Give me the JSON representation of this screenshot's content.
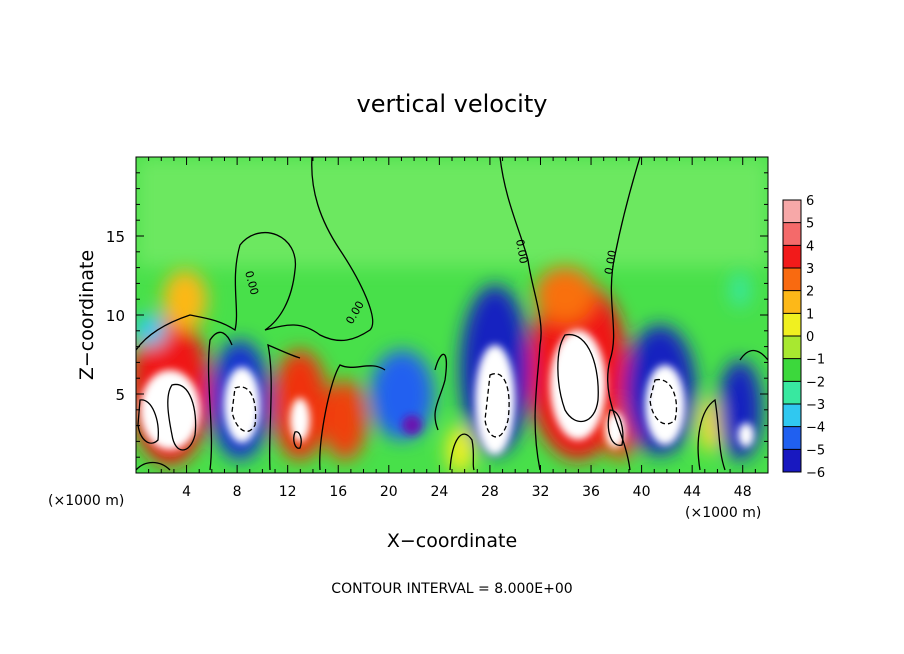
{
  "chart_data": {
    "type": "heatmap",
    "title": "vertical velocity",
    "xlabel": "X−coordinate",
    "ylabel": "Z−coordinate",
    "x_unit_left": "(×1000 m)",
    "x_unit_right": "(×1000 m)",
    "footer": "CONTOUR INTERVAL = 8.000E+00",
    "xlim": [
      0,
      50
    ],
    "ylim": [
      0,
      20
    ],
    "xticks": [
      4,
      8,
      12,
      16,
      20,
      24,
      28,
      32,
      36,
      40,
      44,
      48
    ],
    "yticks": [
      5,
      10,
      15
    ],
    "colorbar": {
      "tick_labels": [
        "6",
        "5",
        "4",
        "3",
        "2",
        "1",
        "0",
        "−1",
        "−2",
        "−3",
        "−4",
        "−5",
        "−6"
      ],
      "colors": [
        "#f7a8a8",
        "#f46a6a",
        "#f21a1a",
        "#f96a10",
        "#fdb818",
        "#f0f020",
        "#a8e830",
        "#3cd83c",
        "#38e8a0",
        "#30c8f0",
        "#2060f0",
        "#1818c0",
        "#6818b0"
      ]
    },
    "contour_label": "0.00",
    "features": [
      {
        "x": 4,
        "z": 4,
        "value": 6
      },
      {
        "x": 8.5,
        "z": 4,
        "value": -6
      },
      {
        "x": 13,
        "z": 3,
        "value": 4
      },
      {
        "x": 16.5,
        "z": 3,
        "value": 4
      },
      {
        "x": 22,
        "z": 4,
        "value": -5
      },
      {
        "x": 28.5,
        "z": 4.5,
        "value": -6
      },
      {
        "x": 34,
        "z": 6,
        "value": 6
      },
      {
        "x": 43,
        "z": 4,
        "value": -6
      },
      {
        "x": 47.5,
        "z": 2.5,
        "value": -6
      }
    ]
  }
}
